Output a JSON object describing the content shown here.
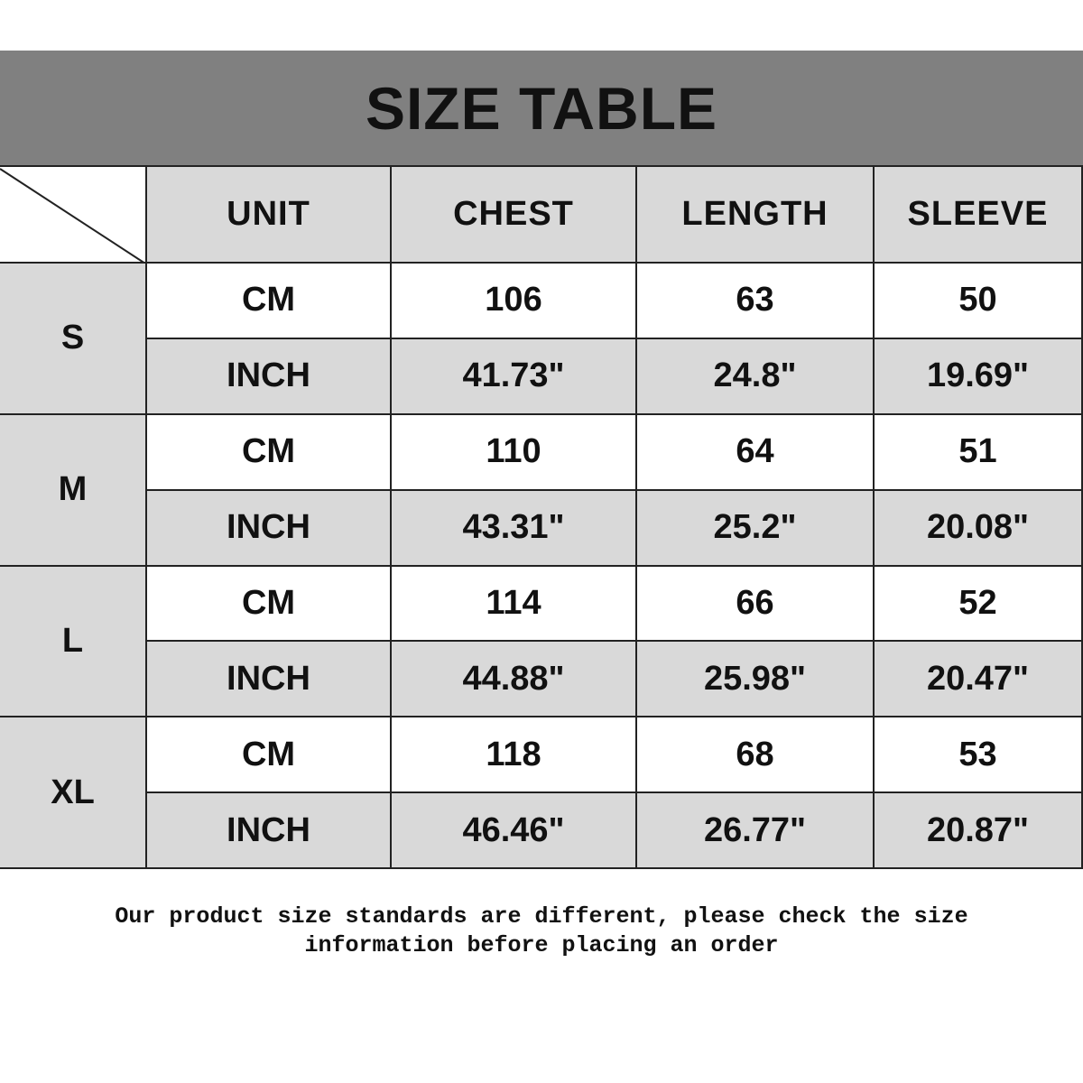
{
  "title": "SIZE TABLE",
  "headers": [
    "UNIT",
    "CHEST",
    "LENGTH",
    "SLEEVE"
  ],
  "rows": [
    {
      "size": "S",
      "cm": [
        "CM",
        "106",
        "63",
        "50"
      ],
      "inch": [
        "INCH",
        "41.73\"",
        "24.8\"",
        "19.69\""
      ]
    },
    {
      "size": "M",
      "cm": [
        "CM",
        "110",
        "64",
        "51"
      ],
      "inch": [
        "INCH",
        "43.31\"",
        "25.2\"",
        "20.08\""
      ]
    },
    {
      "size": "L",
      "cm": [
        "CM",
        "114",
        "66",
        "52"
      ],
      "inch": [
        "INCH",
        "44.88\"",
        "25.98\"",
        "20.47\""
      ]
    },
    {
      "size": "XL",
      "cm": [
        "CM",
        "118",
        "68",
        "53"
      ],
      "inch": [
        "INCH",
        "46.46\"",
        "26.77\"",
        "20.87\""
      ]
    }
  ],
  "note": {
    "line1": "Our product size standards are different, please check the size",
    "line2": "information before placing an order"
  },
  "colors": {
    "banner": "#808080",
    "shaded_cell": "#d9d9d9",
    "plain_cell": "#ffffff",
    "grid": "#222222"
  }
}
